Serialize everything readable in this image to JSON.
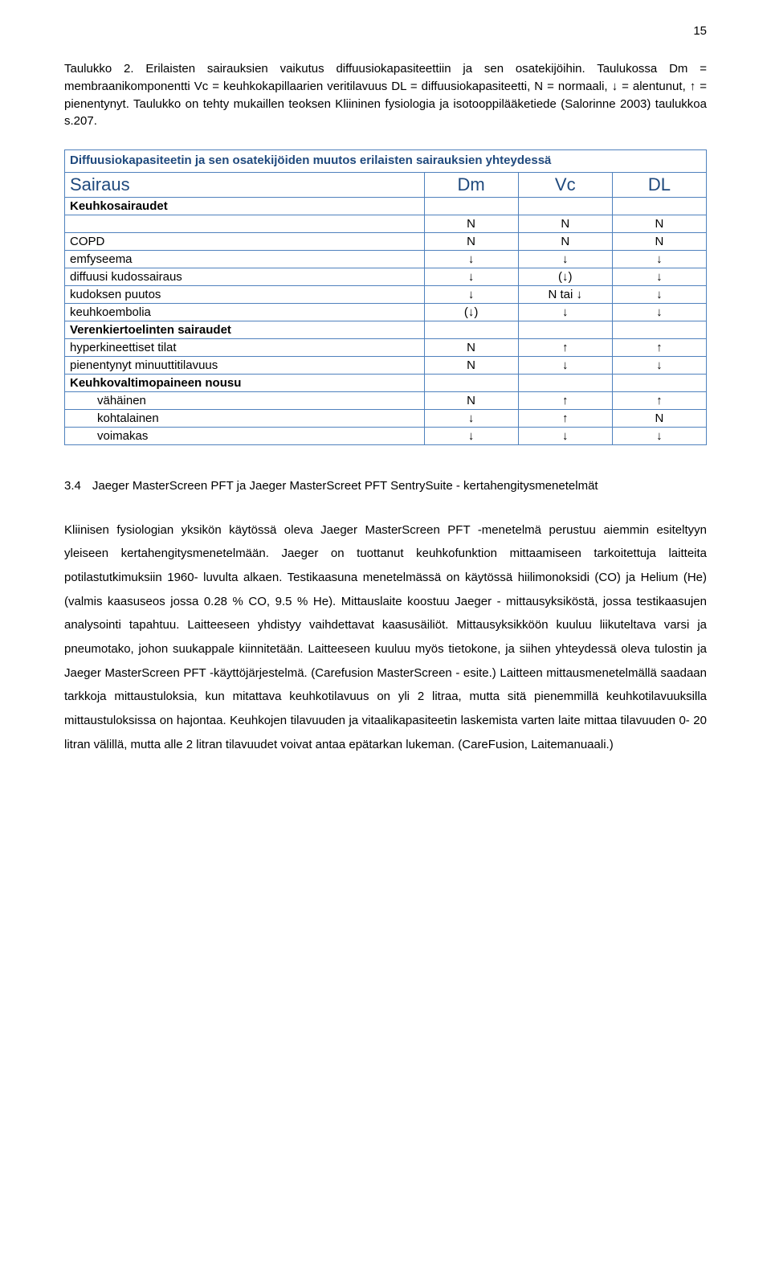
{
  "page_number": "15",
  "caption": "Taulukko 2. Erilaisten sairauksien vaikutus diffuusiokapasiteettiin ja sen osatekijöihin. Taulukossa Dm = membraanikomponentti Vc = keuhkokapillaarien veritilavuus DL = diffuusiokapasiteetti, N = normaali, ↓ = alentunut, ↑ = pienentynyt. Taulukko on tehty mukaillen teoksen Kliininen fysiologia ja isotooppilääketiede (Salorinne 2003) taulukkoa s.207.",
  "table": {
    "border_color": "#4f81bd",
    "title_color": "#1f497d",
    "title": "Diffuusiokapasiteetin ja sen osatekijöiden muutos erilaisten sairauksien yhteydessä",
    "headers": [
      "Sairaus",
      "Dm",
      "Vc",
      "DL"
    ],
    "sections": [
      {
        "label": "Keuhkosairaudet",
        "rows": [
          {
            "label": "",
            "vals": [
              "N",
              "N",
              "N"
            ]
          },
          {
            "label": "COPD",
            "vals": [
              "N",
              "N",
              "N"
            ]
          },
          {
            "label": "emfyseema",
            "vals": [
              "↓",
              "↓",
              "↓"
            ]
          },
          {
            "label": "diffuusi kudossairaus",
            "vals": [
              "↓",
              "(↓)",
              "↓"
            ]
          },
          {
            "label": "kudoksen puutos",
            "vals": [
              "↓",
              "N tai ↓",
              "↓"
            ]
          },
          {
            "label": "keuhkoembolia",
            "vals": [
              "(↓)",
              "↓",
              "↓"
            ]
          }
        ]
      },
      {
        "label": "Verenkiertoelinten sairaudet",
        "rows": [
          {
            "label": "hyperkineettiset tilat",
            "vals": [
              "N",
              "↑",
              "↑"
            ]
          },
          {
            "label": "pienentynyt minuuttitilavuus",
            "vals": [
              "N",
              "↓",
              "↓"
            ]
          }
        ]
      },
      {
        "label": "Keuhkovaltimopaineen nousu",
        "special": "no-vals",
        "rows": [
          {
            "label": "vähäinen",
            "indent": true,
            "vals": [
              "N",
              "↑",
              "↑"
            ]
          },
          {
            "label": "kohtalainen",
            "indent": true,
            "vals": [
              "↓",
              "↑",
              "N"
            ]
          },
          {
            "label": "voimakas",
            "indent": true,
            "vals": [
              "↓",
              "↓",
              "↓"
            ]
          }
        ]
      }
    ]
  },
  "section": {
    "number": "3.4",
    "title": "Jaeger MasterScreen PFT ja Jaeger MasterScreet PFT SentrySuite - kertahengitysmenetelmät"
  },
  "body": "Kliinisen fysiologian yksikön käytössä oleva Jaeger MasterScreen PFT -menetelmä perustuu aiemmin esiteltyyn yleiseen kertahengitysmenetelmään. Jaeger on tuottanut keuhkofunktion mittaamiseen tarkoitettuja laitteita potilastutkimuksiin 1960- luvulta alkaen. Testikaasuna menetelmässä on käytössä hiilimonoksidi (CO) ja Helium (He) (valmis kaasuseos jossa 0.28 % CO, 9.5 % He). Mittauslaite koostuu Jaeger - mittausyksiköstä, jossa testikaasujen analysointi tapahtuu. Laitteeseen yhdistyy vaihdettavat kaasusäiliöt. Mittausyksikköön kuuluu liikuteltava varsi ja pneumotako, johon suukappale kiinnitetään. Laitteeseen kuuluu myös tietokone, ja siihen yhteydessä oleva tulostin ja Jaeger MasterScreen PFT -käyttöjärjestelmä. (Carefusion MasterScreen - esite.) Laitteen mittausmenetelmällä saadaan tarkkoja mittaustuloksia, kun mitattava keuhkotilavuus on yli 2 litraa, mutta sitä pienemmillä keuhkotilavuuksilla mittaustuloksissa on hajontaa. Keuhkojen tilavuuden ja vitaalikapasiteetin laskemista varten laite mittaa tilavuuden 0- 20 litran välillä, mutta alle 2 litran tilavuudet voivat antaa epätarkan lukeman. (CareFusion, Laitemanuaali.)"
}
